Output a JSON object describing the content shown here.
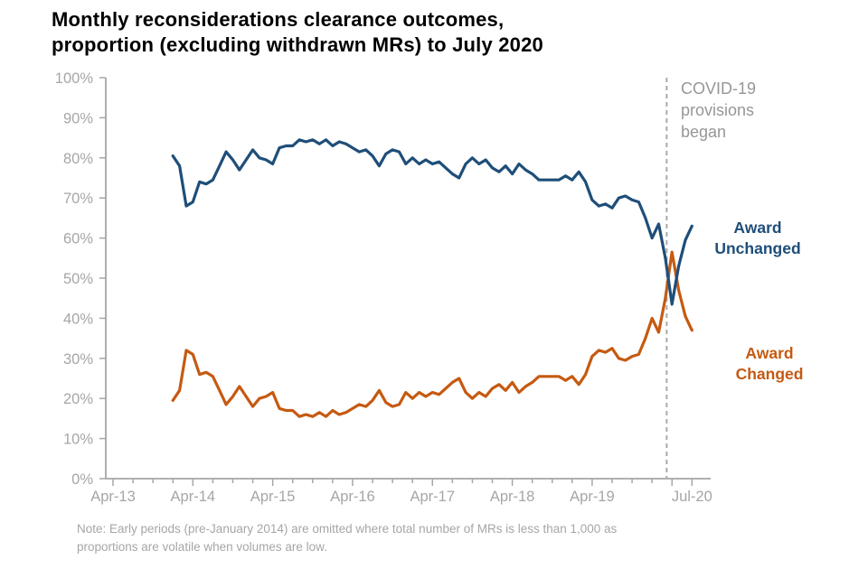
{
  "title": {
    "line1": "Monthly reconsiderations clearance outcomes,",
    "line2": "proportion (excluding withdrawn MRs) to July 2020"
  },
  "note": {
    "line1": "Note: Early periods (pre-January 2014) are omitted where total number of MRs is less than 1,000 as",
    "line2": "proportions are volatile when volumes are low."
  },
  "annotations": {
    "covid": {
      "lines": [
        "COVID-19",
        "provisions",
        "began"
      ],
      "color": "#979797"
    }
  },
  "colors": {
    "award_unchanged": "#1f4e79",
    "award_changed": "#c55a11",
    "axis": "#a6a6a6",
    "dashed_line": "#ababab",
    "title": "#000000"
  },
  "chart_data": {
    "type": "line",
    "title": "Monthly reconsiderations clearance outcomes, proportion (excluding withdrawn MRs) to July 2020",
    "xlabel": "",
    "ylabel": "",
    "ylim": [
      0,
      100
    ],
    "grid": false,
    "legend": "series-end-labels",
    "yticks": [
      "0%",
      "10%",
      "20%",
      "30%",
      "40%",
      "50%",
      "60%",
      "70%",
      "80%",
      "90%",
      "100%"
    ],
    "xticks": [
      {
        "label": "Apr-13",
        "month_from_apr13": 0
      },
      {
        "label": "Apr-14",
        "month_from_apr13": 12
      },
      {
        "label": "Apr-15",
        "month_from_apr13": 24
      },
      {
        "label": "Apr-16",
        "month_from_apr13": 36
      },
      {
        "label": "Apr-17",
        "month_from_apr13": 48
      },
      {
        "label": "Apr-18",
        "month_from_apr13": 60
      },
      {
        "label": "Apr-19",
        "month_from_apr13": 72
      },
      {
        "label": "Jul-20",
        "month_from_apr13": 87
      }
    ],
    "vline": {
      "month_from_apr13": 83.2,
      "style": "dashed",
      "label": "COVID-19 provisions began"
    },
    "x_start_month_from_apr13": 9,
    "x": [
      "Jan-14",
      "Feb-14",
      "Mar-14",
      "Apr-14",
      "May-14",
      "Jun-14",
      "Jul-14",
      "Aug-14",
      "Sep-14",
      "Oct-14",
      "Nov-14",
      "Dec-14",
      "Jan-15",
      "Feb-15",
      "Mar-15",
      "Apr-15",
      "May-15",
      "Jun-15",
      "Jul-15",
      "Aug-15",
      "Sep-15",
      "Oct-15",
      "Nov-15",
      "Dec-15",
      "Jan-16",
      "Feb-16",
      "Mar-16",
      "Apr-16",
      "May-16",
      "Jun-16",
      "Jul-16",
      "Aug-16",
      "Sep-16",
      "Oct-16",
      "Nov-16",
      "Dec-16",
      "Jan-17",
      "Feb-17",
      "Mar-17",
      "Apr-17",
      "May-17",
      "Jun-17",
      "Jul-17",
      "Aug-17",
      "Sep-17",
      "Oct-17",
      "Nov-17",
      "Dec-17",
      "Jan-18",
      "Feb-18",
      "Mar-18",
      "Apr-18",
      "May-18",
      "Jun-18",
      "Jul-18",
      "Aug-18",
      "Sep-18",
      "Oct-18",
      "Nov-18",
      "Dec-18",
      "Jan-19",
      "Feb-19",
      "Mar-19",
      "Apr-19",
      "May-19",
      "Jun-19",
      "Jul-19",
      "Aug-19",
      "Sep-19",
      "Oct-19",
      "Nov-19",
      "Dec-19",
      "Jan-20",
      "Feb-20",
      "Mar-20",
      "Apr-20",
      "May-20",
      "Jun-20",
      "Jul-20"
    ],
    "series": [
      {
        "name": "Award Unchanged",
        "label_lines": [
          "Award",
          "Unchanged"
        ],
        "color": "#1f4e79",
        "values": [
          80.5,
          78,
          68,
          69,
          74,
          73.5,
          74.5,
          78,
          81.5,
          79.5,
          77,
          79.5,
          82,
          80,
          79.5,
          78.5,
          82.5,
          83,
          83,
          84.5,
          84,
          84.5,
          83.5,
          84.5,
          83,
          84,
          83.5,
          82.5,
          81.5,
          82,
          80.5,
          78,
          81,
          82,
          81.5,
          78.5,
          80,
          78.5,
          79.5,
          78.5,
          79,
          77.5,
          76,
          75,
          78.5,
          80,
          78.5,
          79.5,
          77.5,
          76.5,
          78,
          76,
          78.5,
          77,
          76,
          74.5,
          74.5,
          74.5,
          74.5,
          75.5,
          74.5,
          76.5,
          74,
          69.5,
          68,
          68.5,
          67.5,
          70,
          70.5,
          69.5,
          69,
          65,
          60,
          63.5,
          55,
          43.5,
          53,
          59.5,
          63
        ]
      },
      {
        "name": "Award Changed",
        "label_lines": [
          "Award",
          "Changed"
        ],
        "color": "#c55a11",
        "values": [
          19.5,
          22,
          32,
          31,
          26,
          26.5,
          25.5,
          22,
          18.5,
          20.5,
          23,
          20.5,
          18,
          20,
          20.5,
          21.5,
          17.5,
          17,
          17,
          15.5,
          16,
          15.5,
          16.5,
          15.5,
          17,
          16,
          16.5,
          17.5,
          18.5,
          18,
          19.5,
          22,
          19,
          18,
          18.5,
          21.5,
          20,
          21.5,
          20.5,
          21.5,
          21,
          22.5,
          24,
          25,
          21.5,
          20,
          21.5,
          20.5,
          22.5,
          23.5,
          22,
          24,
          21.5,
          23,
          24,
          25.5,
          25.5,
          25.5,
          25.5,
          24.5,
          25.5,
          23.5,
          26,
          30.5,
          32,
          31.5,
          32.5,
          30,
          29.5,
          30.5,
          31,
          35,
          40,
          36.5,
          45,
          56.5,
          47,
          40.5,
          37
        ]
      }
    ]
  }
}
